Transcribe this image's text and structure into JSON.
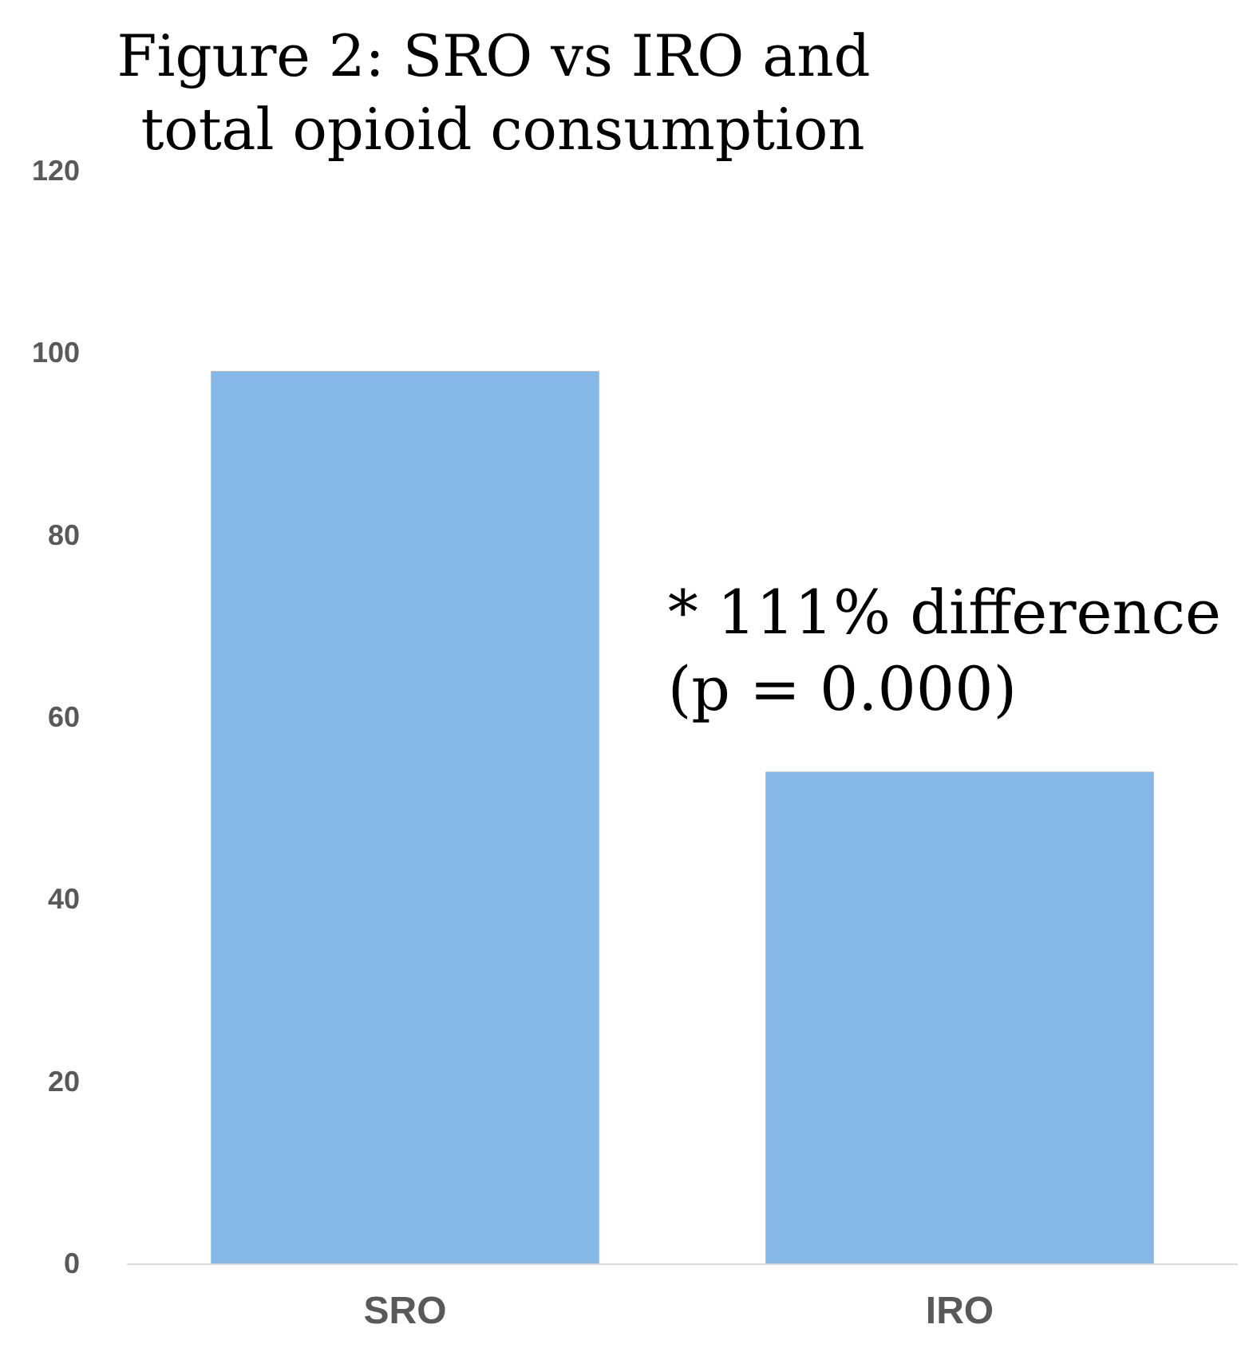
{
  "chart_data": {
    "type": "bar",
    "title": "Figure 2: SRO vs IRO and total opioid consumption",
    "categories": [
      "SRO",
      "IRO"
    ],
    "values": [
      98,
      54
    ],
    "color": "#85b8e6",
    "ylim": [
      0,
      120
    ],
    "yticks": [
      0,
      20,
      40,
      60,
      80,
      100,
      120
    ],
    "grid": false,
    "annotations": [
      "* 111% difference\n(p = 0.000)"
    ]
  }
}
